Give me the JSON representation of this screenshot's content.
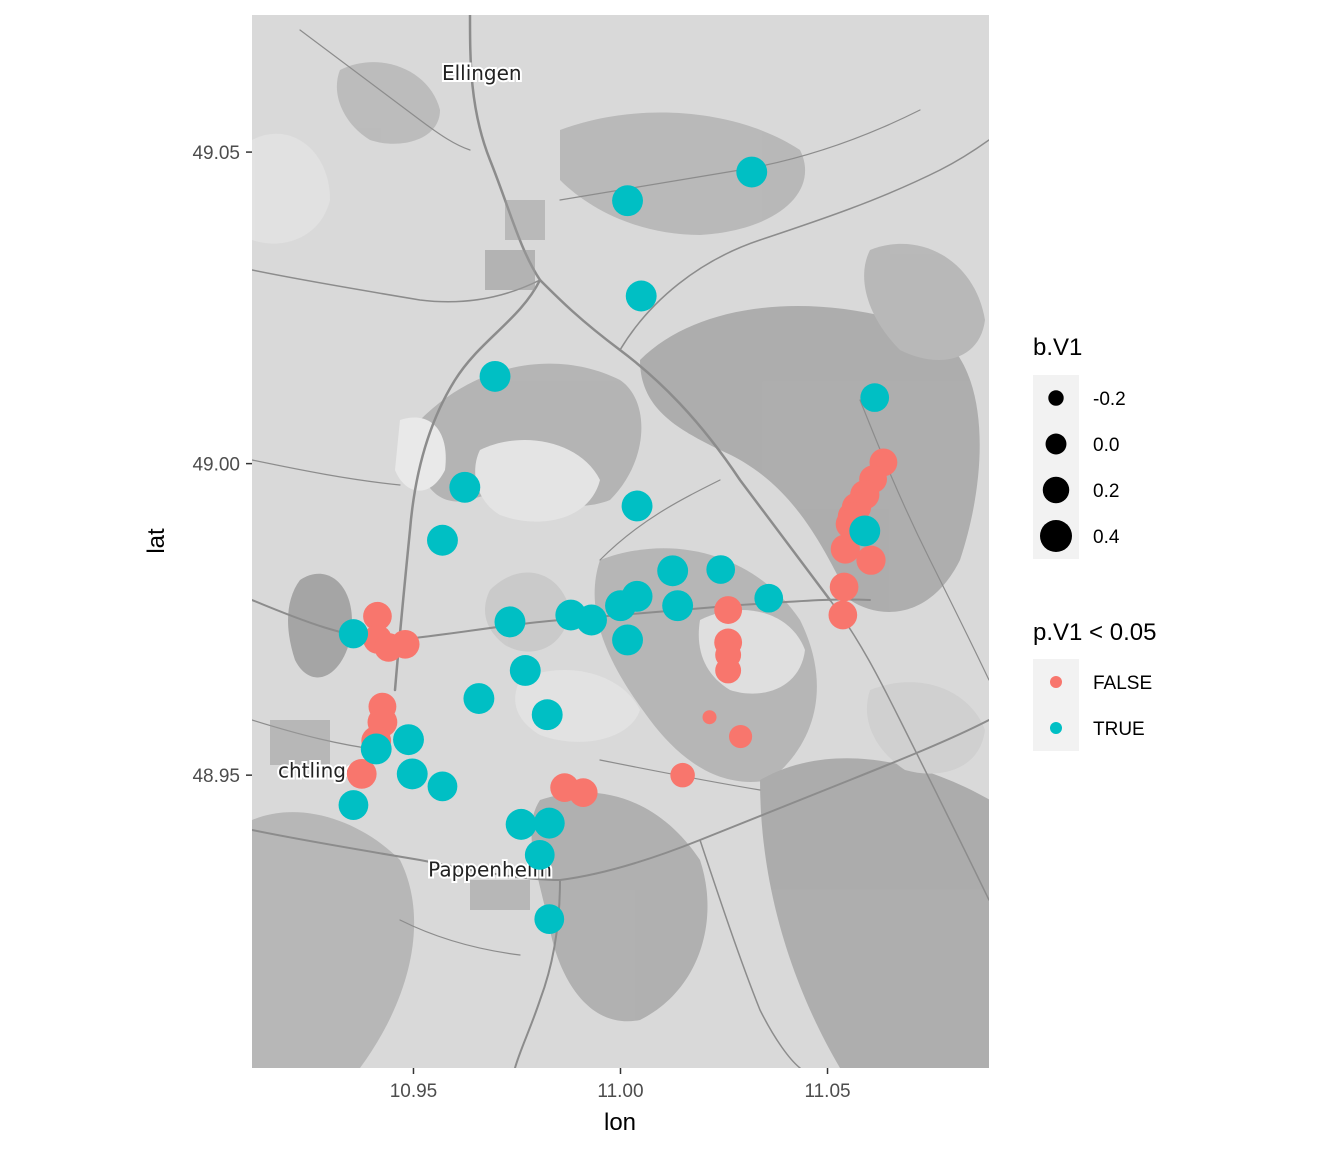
{
  "chart_data": {
    "type": "scatter",
    "xlabel": "lon",
    "ylabel": "lat",
    "xlim": [
      10.911,
      11.089
    ],
    "ylim": [
      48.903,
      49.072
    ],
    "x_ticks": [
      {
        "value": 10.95,
        "label": "10.95"
      },
      {
        "value": 11.0,
        "label": "11.00"
      },
      {
        "value": 11.05,
        "label": "11.05"
      }
    ],
    "y_ticks": [
      {
        "value": 48.95,
        "label": "48.95"
      },
      {
        "value": 49.0,
        "label": "49.00"
      },
      {
        "value": 49.05,
        "label": "49.05"
      }
    ],
    "basemap": "terrain, greyscale",
    "places": [
      {
        "name": "Ellingen",
        "lon": 10.9665,
        "lat": 49.0616
      },
      {
        "name": "chtlingen",
        "lon": 10.9285,
        "lat": 48.9496
      },
      {
        "name": "Pappenheim",
        "lon": 10.9685,
        "lat": 48.9337
      }
    ],
    "size_legend": {
      "title": "b.V1",
      "entries": [
        {
          "value": -0.2,
          "label": "-0.2"
        },
        {
          "value": 0.0,
          "label": "0.0"
        },
        {
          "value": 0.2,
          "label": "0.2"
        },
        {
          "value": 0.4,
          "label": "0.4"
        }
      ]
    },
    "color_legend": {
      "title": "p.V1 < 0.05",
      "entries": [
        {
          "label": "FALSE",
          "color": "#F8766D"
        },
        {
          "label": "TRUE",
          "color": "#00BFC4"
        }
      ]
    },
    "points": [
      {
        "lon": 11.0317,
        "lat": 49.0468,
        "b": 0.36,
        "p_sig": "TRUE"
      },
      {
        "lon": 11.0017,
        "lat": 49.0422,
        "b": 0.36,
        "p_sig": "TRUE"
      },
      {
        "lon": 11.005,
        "lat": 49.0269,
        "b": 0.36,
        "p_sig": "TRUE"
      },
      {
        "lon": 10.9697,
        "lat": 49.014,
        "b": 0.36,
        "p_sig": "TRUE"
      },
      {
        "lon": 11.0614,
        "lat": 49.0106,
        "b": 0.28,
        "p_sig": "TRUE"
      },
      {
        "lon": 10.9624,
        "lat": 48.9962,
        "b": 0.36,
        "p_sig": "TRUE"
      },
      {
        "lon": 11.004,
        "lat": 48.9932,
        "b": 0.36,
        "p_sig": "TRUE"
      },
      {
        "lon": 10.957,
        "lat": 48.9877,
        "b": 0.36,
        "p_sig": "TRUE"
      },
      {
        "lon": 11.059,
        "lat": 48.9892,
        "b": 0.36,
        "p_sig": "TRUE"
      },
      {
        "lon": 11.0126,
        "lat": 48.9828,
        "b": 0.36,
        "p_sig": "TRUE"
      },
      {
        "lon": 11.0242,
        "lat": 48.983,
        "b": 0.28,
        "p_sig": "TRUE"
      },
      {
        "lon": 11.0358,
        "lat": 48.9784,
        "b": 0.28,
        "p_sig": "TRUE"
      },
      {
        "lon": 11.004,
        "lat": 48.9787,
        "b": 0.36,
        "p_sig": "TRUE"
      },
      {
        "lon": 11.0138,
        "lat": 48.9772,
        "b": 0.36,
        "p_sig": "TRUE"
      },
      {
        "lon": 11.0,
        "lat": 48.9772,
        "b": 0.36,
        "p_sig": "TRUE"
      },
      {
        "lon": 10.988,
        "lat": 48.9757,
        "b": 0.36,
        "p_sig": "TRUE"
      },
      {
        "lon": 10.993,
        "lat": 48.9749,
        "b": 0.36,
        "p_sig": "TRUE"
      },
      {
        "lon": 10.9733,
        "lat": 48.9746,
        "b": 0.36,
        "p_sig": "TRUE"
      },
      {
        "lon": 11.0017,
        "lat": 48.9717,
        "b": 0.36,
        "p_sig": "TRUE"
      },
      {
        "lon": 10.9355,
        "lat": 48.9727,
        "b": 0.3,
        "p_sig": "TRUE"
      },
      {
        "lon": 10.977,
        "lat": 48.9668,
        "b": 0.36,
        "p_sig": "TRUE"
      },
      {
        "lon": 10.9658,
        "lat": 48.9623,
        "b": 0.36,
        "p_sig": "TRUE"
      },
      {
        "lon": 10.9823,
        "lat": 48.9597,
        "b": 0.36,
        "p_sig": "TRUE"
      },
      {
        "lon": 10.9488,
        "lat": 48.9557,
        "b": 0.36,
        "p_sig": "TRUE"
      },
      {
        "lon": 10.941,
        "lat": 48.9542,
        "b": 0.36,
        "p_sig": "TRUE"
      },
      {
        "lon": 10.9497,
        "lat": 48.9502,
        "b": 0.36,
        "p_sig": "TRUE"
      },
      {
        "lon": 10.957,
        "lat": 48.9482,
        "b": 0.32,
        "p_sig": "TRUE"
      },
      {
        "lon": 10.9355,
        "lat": 48.9452,
        "b": 0.32,
        "p_sig": "TRUE"
      },
      {
        "lon": 10.976,
        "lat": 48.9421,
        "b": 0.36,
        "p_sig": "TRUE"
      },
      {
        "lon": 10.9828,
        "lat": 48.9423,
        "b": 0.36,
        "p_sig": "TRUE"
      },
      {
        "lon": 10.9805,
        "lat": 48.9372,
        "b": 0.32,
        "p_sig": "TRUE"
      },
      {
        "lon": 10.9828,
        "lat": 48.9269,
        "b": 0.32,
        "p_sig": "TRUE"
      },
      {
        "lon": 11.0635,
        "lat": 49.0002,
        "b": 0.25,
        "p_sig": "FALSE"
      },
      {
        "lon": 11.061,
        "lat": 48.9975,
        "b": 0.25,
        "p_sig": "FALSE"
      },
      {
        "lon": 11.059,
        "lat": 48.995,
        "b": 0.3,
        "p_sig": "FALSE"
      },
      {
        "lon": 11.057,
        "lat": 48.993,
        "b": 0.3,
        "p_sig": "FALSE"
      },
      {
        "lon": 11.056,
        "lat": 48.9915,
        "b": 0.3,
        "p_sig": "FALSE"
      },
      {
        "lon": 11.0555,
        "lat": 48.9903,
        "b": 0.3,
        "p_sig": "FALSE"
      },
      {
        "lon": 11.0543,
        "lat": 48.9863,
        "b": 0.3,
        "p_sig": "FALSE"
      },
      {
        "lon": 11.0605,
        "lat": 48.9845,
        "b": 0.3,
        "p_sig": "FALSE"
      },
      {
        "lon": 11.054,
        "lat": 48.9802,
        "b": 0.28,
        "p_sig": "FALSE"
      },
      {
        "lon": 11.0537,
        "lat": 48.9757,
        "b": 0.28,
        "p_sig": "FALSE"
      },
      {
        "lon": 11.026,
        "lat": 48.9765,
        "b": 0.25,
        "p_sig": "FALSE"
      },
      {
        "lon": 11.026,
        "lat": 48.9713,
        "b": 0.25,
        "p_sig": "FALSE"
      },
      {
        "lon": 11.026,
        "lat": 48.9693,
        "b": 0.18,
        "p_sig": "FALSE"
      },
      {
        "lon": 11.026,
        "lat": 48.9668,
        "b": 0.18,
        "p_sig": "FALSE"
      },
      {
        "lon": 10.9413,
        "lat": 48.9755,
        "b": 0.28,
        "p_sig": "FALSE"
      },
      {
        "lon": 10.9413,
        "lat": 48.9718,
        "b": 0.28,
        "p_sig": "FALSE"
      },
      {
        "lon": 10.944,
        "lat": 48.9705,
        "b": 0.28,
        "p_sig": "FALSE"
      },
      {
        "lon": 10.948,
        "lat": 48.971,
        "b": 0.28,
        "p_sig": "FALSE"
      },
      {
        "lon": 10.9425,
        "lat": 48.961,
        "b": 0.25,
        "p_sig": "FALSE"
      },
      {
        "lon": 10.9425,
        "lat": 48.9585,
        "b": 0.32,
        "p_sig": "FALSE"
      },
      {
        "lon": 10.941,
        "lat": 48.9555,
        "b": 0.32,
        "p_sig": "FALSE"
      },
      {
        "lon": 10.9375,
        "lat": 48.9502,
        "b": 0.32,
        "p_sig": "FALSE"
      },
      {
        "lon": 10.9865,
        "lat": 48.948,
        "b": 0.28,
        "p_sig": "FALSE"
      },
      {
        "lon": 10.991,
        "lat": 48.9472,
        "b": 0.28,
        "p_sig": "FALSE"
      },
      {
        "lon": 11.015,
        "lat": 48.95,
        "b": 0.13,
        "p_sig": "FALSE"
      },
      {
        "lon": 11.029,
        "lat": 48.9562,
        "b": 0.08,
        "p_sig": "FALSE"
      },
      {
        "lon": 11.0215,
        "lat": 48.9593,
        "b": -0.25,
        "p_sig": "FALSE"
      }
    ]
  }
}
